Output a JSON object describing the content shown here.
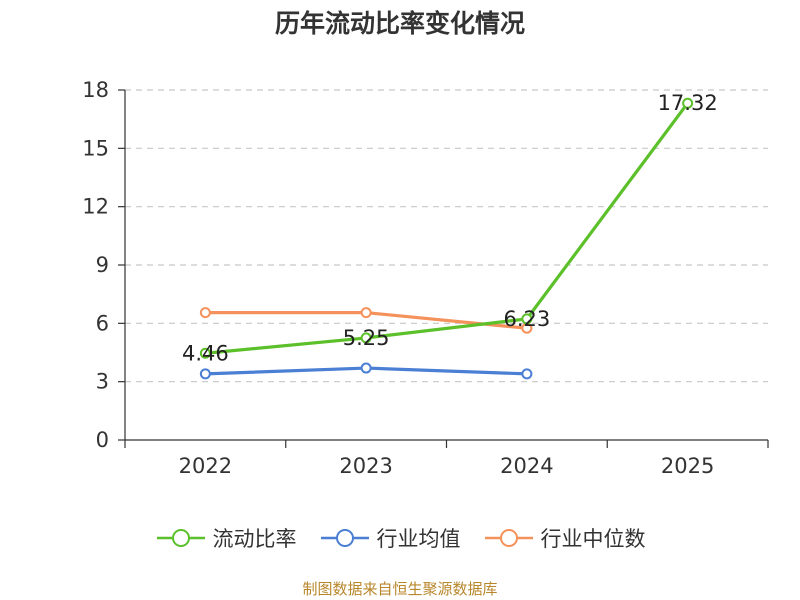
{
  "chart_data": {
    "type": "line",
    "title": "历年流动比率变化情况",
    "categories": [
      "2022",
      "2023",
      "2024",
      "2025"
    ],
    "ylim": [
      0,
      18
    ],
    "yticks": [
      0,
      3,
      6,
      9,
      12,
      15,
      18
    ],
    "grid": true,
    "legend_position": "bottom",
    "series": [
      {
        "name": "流动比率",
        "color": "#5cc02a",
        "values": [
          4.46,
          5.25,
          6.23,
          17.32
        ],
        "labels": [
          "4.46",
          "5.25",
          "6.23",
          "17.32"
        ]
      },
      {
        "name": "行业均值",
        "color": "#4a7fd4",
        "values": [
          3.4,
          3.7,
          3.4,
          null
        ]
      },
      {
        "name": "行业中位数",
        "color": "#f5915a",
        "values": [
          6.55,
          6.55,
          5.75,
          null
        ]
      }
    ],
    "source": "制图数据来自恒生聚源数据库"
  }
}
